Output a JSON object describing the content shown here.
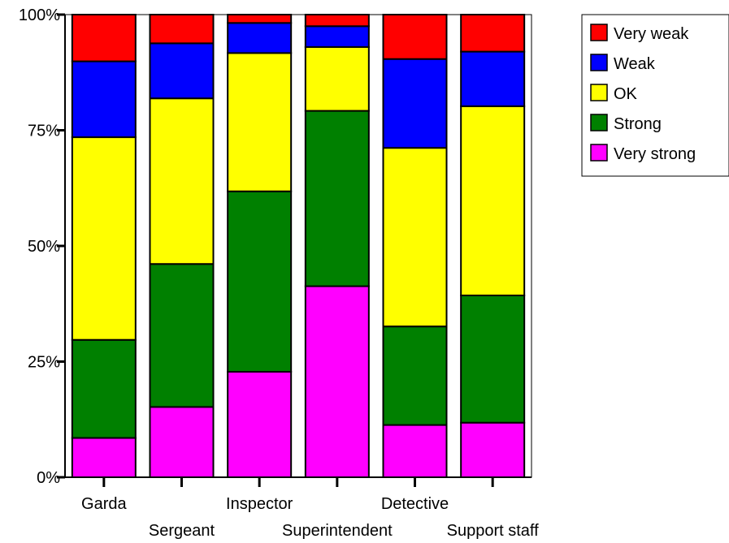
{
  "chart_data": {
    "type": "bar",
    "stacked": true,
    "normalized": true,
    "title": "",
    "xlabel": "",
    "ylabel": "",
    "ylim": [
      0,
      100
    ],
    "yticks": [
      "0%",
      "25%",
      "50%",
      "75%",
      "100%"
    ],
    "categories": [
      "Garda",
      "Sergeant",
      "Inspector",
      "Superintendent",
      "Detective",
      "Support staff"
    ],
    "legend_position": "top-right",
    "series": [
      {
        "name": "Very strong",
        "color": "#ff00ff",
        "values": [
          8.5,
          15.2,
          22.8,
          41.3,
          11.3,
          11.8
        ]
      },
      {
        "name": "Strong",
        "color": "#008000",
        "values": [
          21.2,
          30.9,
          39.0,
          37.9,
          21.3,
          27.5
        ]
      },
      {
        "name": "OK",
        "color": "#ffff00",
        "values": [
          43.8,
          35.8,
          29.9,
          13.8,
          38.6,
          40.9
        ]
      },
      {
        "name": "Weak",
        "color": "#0000ff",
        "values": [
          16.4,
          11.9,
          6.5,
          4.5,
          19.2,
          11.8
        ]
      },
      {
        "name": "Very weak",
        "color": "#ff0000",
        "values": [
          10.1,
          6.2,
          1.8,
          2.5,
          9.6,
          8.0
        ]
      }
    ]
  }
}
